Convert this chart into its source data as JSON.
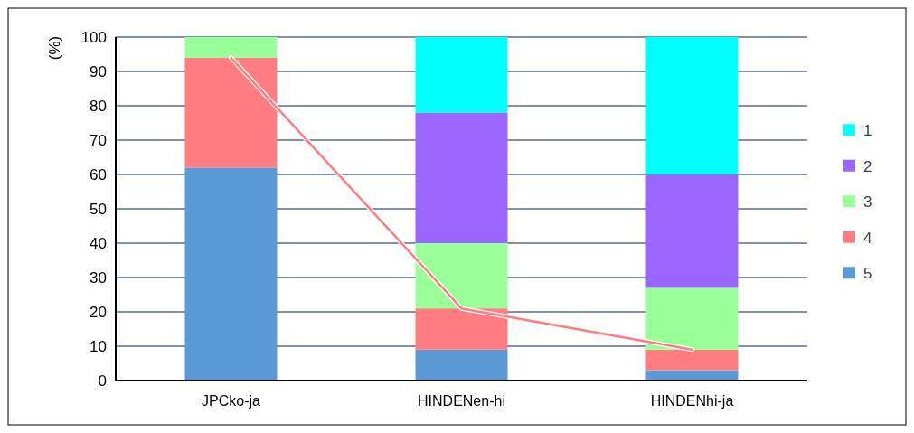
{
  "chart_data": {
    "type": "bar",
    "stacked": true,
    "ylabel": "(%)",
    "categories": [
      "JPCko-ja",
      "HINDENen-hi",
      "HINDENhi-ja"
    ],
    "series": [
      {
        "name": "5",
        "color": "#5b9bd5",
        "values": [
          62,
          9,
          3
        ]
      },
      {
        "name": "4",
        "color": "#ff7c80",
        "values": [
          32,
          12,
          6
        ]
      },
      {
        "name": "3",
        "color": "#99ff99",
        "values": [
          6,
          19,
          18
        ]
      },
      {
        "name": "2",
        "color": "#9966ff",
        "values": [
          0,
          38,
          33
        ]
      },
      {
        "name": "1",
        "color": "#00ffff",
        "values": [
          0,
          22,
          40
        ]
      },
      {
        "type": "line",
        "color": "#ff7c80",
        "values": [
          94,
          21,
          9
        ]
      }
    ],
    "ylim": [
      0,
      100
    ],
    "yticks": [
      0,
      10,
      20,
      30,
      40,
      50,
      60,
      70,
      80,
      90,
      100
    ],
    "grid": "y",
    "legend": "right"
  }
}
